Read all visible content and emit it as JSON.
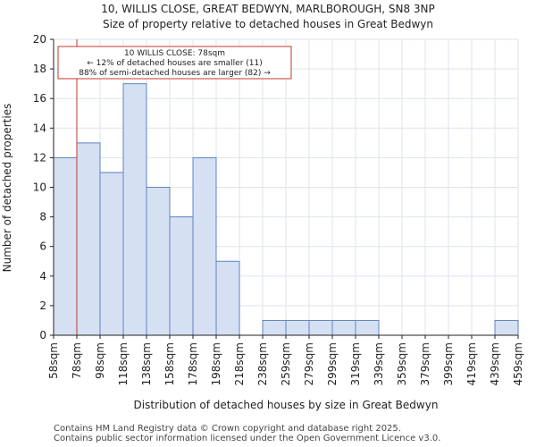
{
  "header": {
    "title": "10, WILLIS CLOSE, GREAT BEDWYN, MARLBOROUGH, SN8 3NP",
    "subtitle": "Size of property relative to detached houses in Great Bedwyn"
  },
  "chart_data": {
    "type": "bar",
    "title": "10, WILLIS CLOSE, GREAT BEDWYN, MARLBOROUGH, SN8 3NP",
    "subtitle": "Size of property relative to detached houses in Great Bedwyn",
    "xlabel": "Distribution of detached houses by size in Great Bedwyn",
    "ylabel": "Number of detached properties",
    "ylim": [
      0,
      20
    ],
    "yticks": [
      0,
      2,
      4,
      6,
      8,
      10,
      12,
      14,
      16,
      18,
      20
    ],
    "bin_edges": [
      "58sqm",
      "78sqm",
      "98sqm",
      "118sqm",
      "138sqm",
      "158sqm",
      "178sqm",
      "198sqm",
      "218sqm",
      "238sqm",
      "259sqm",
      "279sqm",
      "299sqm",
      "319sqm",
      "339sqm",
      "359sqm",
      "379sqm",
      "399sqm",
      "419sqm",
      "439sqm",
      "459sqm"
    ],
    "values": [
      12,
      13,
      11,
      17,
      10,
      8,
      12,
      5,
      0,
      1,
      1,
      1,
      1,
      1,
      0,
      0,
      0,
      0,
      0,
      1
    ],
    "marker": {
      "bin_position": 1,
      "label": "10 WILLIS CLOSE: 78sqm"
    },
    "annotation": [
      "10 WILLIS CLOSE: 78sqm",
      "← 12% of detached houses are smaller (11)",
      "88% of semi-detached houses are larger (82) →"
    ],
    "colors": {
      "bar_fill": "#d6e0f3",
      "bar_edge": "#5b83c5",
      "marker": "#c0392b",
      "grid": "#dde3ee"
    }
  },
  "footer": {
    "line1": "Contains HM Land Registry data © Crown copyright and database right 2025.",
    "line2": "Contains public sector information licensed under the Open Government Licence v3.0."
  }
}
